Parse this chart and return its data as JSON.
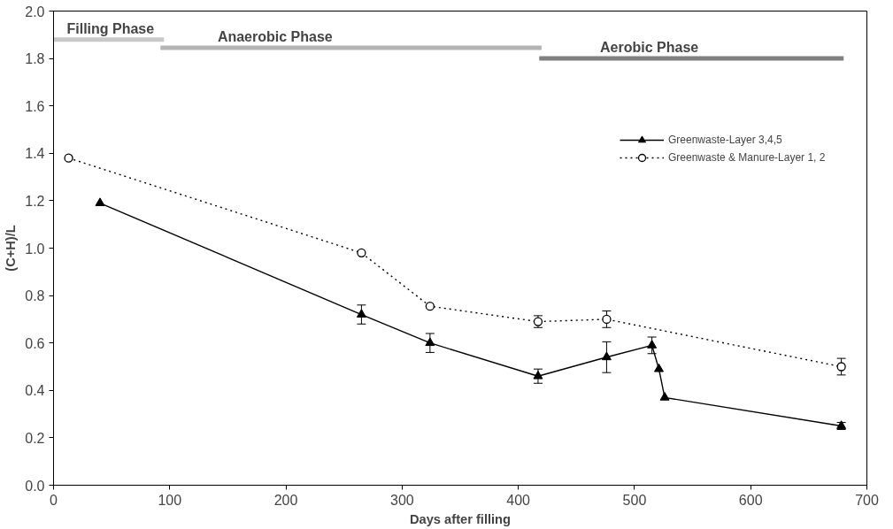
{
  "chart_data": {
    "type": "line",
    "xlabel": "Days after filling",
    "ylabel": "(C+H)/L",
    "xlim": [
      0,
      700
    ],
    "xticks": [
      0,
      100,
      200,
      300,
      400,
      500,
      600,
      700
    ],
    "ylim": [
      0,
      2.0
    ],
    "yticks": [
      {
        "value": 0,
        "label": "0.0"
      },
      {
        "value": 0.2,
        "label": "0.2"
      },
      {
        "value": 0.4,
        "label": "0.4"
      },
      {
        "value": 0.6,
        "label": "0.6"
      },
      {
        "value": 0.8,
        "label": "0.8"
      },
      {
        "value": 1.0,
        "label": "1.0"
      },
      {
        "value": 1.2,
        "label": "1.2"
      },
      {
        "value": 1.4,
        "label": "1.4"
      },
      {
        "value": 1.6,
        "label": "1.6"
      },
      {
        "value": 1.8,
        "label": "1.8"
      },
      {
        "value": 2.0,
        "label": "2.0"
      }
    ],
    "grid": false,
    "legend": "top right",
    "series": [
      {
        "name": "Greenwaste-Layer 3,4,5",
        "color": "#000000",
        "marker": "triangle",
        "line_style": "solid",
        "x": [
          40,
          265,
          324,
          417,
          476,
          515,
          521,
          526,
          678
        ],
        "values": [
          1.19,
          0.72,
          0.6,
          0.46,
          0.54,
          0.59,
          0.49,
          0.37,
          0.25
        ],
        "errors": [
          null,
          0.04,
          0.04,
          0.03,
          0.065,
          0.035,
          null,
          null,
          0.015
        ]
      },
      {
        "name": "Greenwaste & Manure-Layer 1, 2",
        "color": "#000000",
        "marker": "circle",
        "line_style": "dotted",
        "x": [
          13,
          265,
          324,
          417,
          476,
          678
        ],
        "values": [
          1.38,
          0.98,
          0.755,
          0.69,
          0.7,
          0.5
        ],
        "errors": [
          null,
          null,
          null,
          0.025,
          0.035,
          0.035
        ]
      },
      {
        "name": "Filling Phase",
        "color": "#c8c8c8",
        "marker": "none",
        "line_style": "solid",
        "x": [
          0,
          95
        ],
        "values": [
          1.88,
          1.88
        ]
      },
      {
        "name": "Anaerobic Phase",
        "color": "#b4b4b4",
        "marker": "none",
        "line_style": "solid",
        "x": [
          92,
          420
        ],
        "values": [
          1.845,
          1.845
        ]
      },
      {
        "name": "Aerobic Phase",
        "color": "#808080",
        "marker": "none",
        "line_style": "solid",
        "x": [
          418,
          680
        ],
        "values": [
          1.8,
          1.8
        ]
      }
    ]
  }
}
